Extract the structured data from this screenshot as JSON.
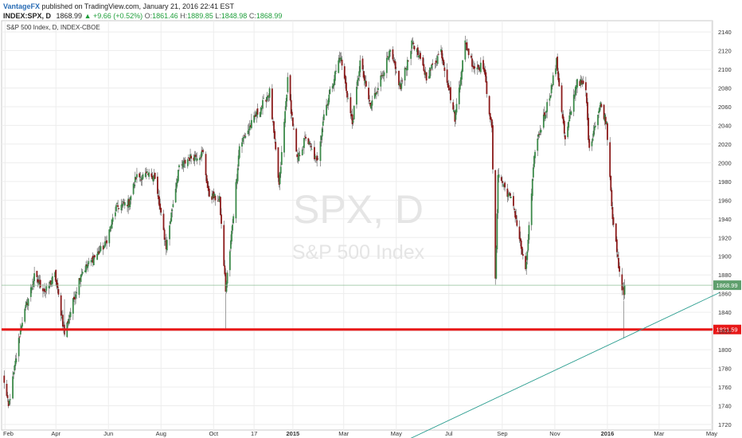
{
  "header": {
    "author": "VantageFX",
    "published_text": "published on TradingView.com, January 21, 2016 22:41 EST",
    "symbol": "INDEX:SPX, D",
    "last": "1868.99",
    "arrow": "▲",
    "change": "+9.66 (+0.52%)",
    "o_label": "O:",
    "o_val": "1861.46",
    "h_label": "H:",
    "h_val": "1889.85",
    "l_label": "L:",
    "l_val": "1848.98",
    "c_label": "C:",
    "c_val": "1868.99"
  },
  "chart_data": {
    "type": "candlestick",
    "title": "S&P 500 Index, D, INDEX-CBOE",
    "watermark_symbol": "SPX, D",
    "watermark_name": "S&P 500 Index",
    "x_ticks": [
      "Feb",
      "Apr",
      "Jun",
      "Aug",
      "Oct",
      "17",
      "2015",
      "Mar",
      "May",
      "Jul",
      "Sep",
      "Nov",
      "2016",
      "Mar",
      "May"
    ],
    "y_ticks": [
      1720,
      1740,
      1760,
      1780,
      1800,
      1820,
      1840,
      1860,
      1880,
      1900,
      1920,
      1940,
      1960,
      1980,
      2000,
      2020,
      2040,
      2060,
      2080,
      2100,
      2120,
      2140
    ],
    "ylim": [
      1714,
      2152
    ],
    "last_price_label": "1868.99",
    "last_price": 1868.99,
    "support_label": "1821.59",
    "support_level": 1821.59,
    "trendline": {
      "from": [
        "2015-05-06",
        1700
      ],
      "to": [
        "2016-05-10",
        1861
      ]
    },
    "anchors": [
      [
        "2014-01-30",
        1772
      ],
      [
        "2014-02-05",
        1738
      ],
      [
        "2014-02-20",
        1828
      ],
      [
        "2014-03-07",
        1878
      ],
      [
        "2014-03-20",
        1862
      ],
      [
        "2014-03-31",
        1880
      ],
      [
        "2014-04-11",
        1817
      ],
      [
        "2014-04-30",
        1882
      ],
      [
        "2014-05-13",
        1896
      ],
      [
        "2014-05-28",
        1912
      ],
      [
        "2014-06-10",
        1952
      ],
      [
        "2014-06-25",
        1958
      ],
      [
        "2014-07-03",
        1985
      ],
      [
        "2014-07-24",
        1987
      ],
      [
        "2014-08-07",
        1910
      ],
      [
        "2014-08-21",
        1992
      ],
      [
        "2014-09-02",
        2005
      ],
      [
        "2014-09-19",
        2010
      ],
      [
        "2014-09-25",
        1966
      ],
      [
        "2014-10-08",
        1960
      ],
      [
        "2014-10-15",
        1864
      ],
      [
        "2014-10-20",
        1905
      ],
      [
        "2014-10-31",
        2018
      ],
      [
        "2014-11-20",
        2052
      ],
      [
        "2014-12-05",
        2076
      ],
      [
        "2014-12-16",
        1975
      ],
      [
        "2014-12-26",
        2088
      ],
      [
        "2015-01-06",
        2002
      ],
      [
        "2015-01-16",
        2028
      ],
      [
        "2015-01-29",
        2000
      ],
      [
        "2015-02-06",
        2052
      ],
      [
        "2015-02-25",
        2115
      ],
      [
        "2015-03-11",
        2042
      ],
      [
        "2015-03-20",
        2108
      ],
      [
        "2015-04-01",
        2060
      ],
      [
        "2015-04-24",
        2118
      ],
      [
        "2015-05-06",
        2080
      ],
      [
        "2015-05-20",
        2130
      ],
      [
        "2015-06-05",
        2092
      ],
      [
        "2015-06-22",
        2120
      ],
      [
        "2015-07-08",
        2048
      ],
      [
        "2015-07-20",
        2128
      ],
      [
        "2015-07-30",
        2102
      ],
      [
        "2015-08-10",
        2104
      ],
      [
        "2015-08-20",
        2035
      ],
      [
        "2015-08-24",
        1872
      ],
      [
        "2015-08-27",
        1988
      ],
      [
        "2015-09-14",
        1955
      ],
      [
        "2015-09-28",
        1882
      ],
      [
        "2015-10-09",
        2015
      ],
      [
        "2015-10-26",
        2072
      ],
      [
        "2015-11-03",
        2108
      ],
      [
        "2015-11-13",
        2023
      ],
      [
        "2015-11-27",
        2090
      ],
      [
        "2015-12-07",
        2078
      ],
      [
        "2015-12-11",
        2012
      ],
      [
        "2015-12-17",
        2040
      ],
      [
        "2015-12-24",
        2062
      ],
      [
        "2015-12-31",
        2043
      ],
      [
        "2016-01-07",
        1943
      ],
      [
        "2016-01-15",
        1880
      ],
      [
        "2016-01-20",
        1859
      ],
      [
        "2016-01-21",
        1869
      ]
    ]
  }
}
